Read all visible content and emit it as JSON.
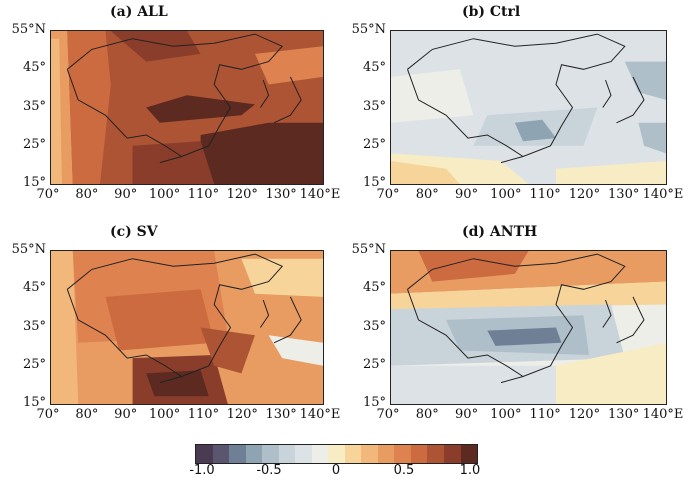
{
  "figure": {
    "panels": [
      {
        "id": "a",
        "title": "(a) ALL",
        "lat_labels": [
          "55°N",
          "45°",
          "35°",
          "25°",
          "15°"
        ],
        "lon_labels": [
          "70°",
          "80°",
          "90°",
          "100°",
          "110°",
          "120°",
          "130°",
          "140°E"
        ]
      },
      {
        "id": "b",
        "title": "(b) Ctrl",
        "lat_labels": [
          "55°N",
          "45°",
          "35°",
          "25°",
          "15°"
        ],
        "lon_labels": [
          "70°",
          "80°",
          "90°",
          "100°",
          "110°",
          "120°",
          "130°",
          "140°E"
        ]
      },
      {
        "id": "c",
        "title": "(c) SV",
        "lat_labels": [
          "55°N",
          "45°",
          "35°",
          "25°",
          "15°"
        ],
        "lon_labels": [
          "70°",
          "80°",
          "90°",
          "100°",
          "110°",
          "120°",
          "130°",
          "140°E"
        ]
      },
      {
        "id": "d",
        "title": "(d) ANTH",
        "lat_labels": [
          "55°N",
          "45°",
          "35°",
          "25°",
          "15°"
        ],
        "lon_labels": [
          "70°",
          "80°",
          "90°",
          "100°",
          "110°",
          "120°",
          "130°",
          "140°E"
        ]
      }
    ],
    "colorbar": {
      "tick_labels": [
        "-1.0",
        "-0.5",
        "0",
        "0.5",
        "1.0"
      ],
      "colors": [
        "#4a3a52",
        "#5a5670",
        "#6f7f96",
        "#8ea4b3",
        "#aebfc9",
        "#c9d3da",
        "#dde2e7",
        "#eeeee8",
        "#f8ecc4",
        "#f6d49a",
        "#f2b77a",
        "#e89c62",
        "#de8250",
        "#cc6a40",
        "#ad5434",
        "#8a3d2a",
        "#5c2a20"
      ]
    }
  }
}
